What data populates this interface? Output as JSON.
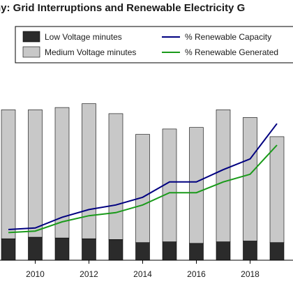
{
  "chart_data": {
    "type": "bar",
    "title": "ny: Grid Interruptions and Renewable Electricity G",
    "x": [
      2009,
      2010,
      2011,
      2012,
      2013,
      2014,
      2015,
      2016,
      2017,
      2018,
      2019
    ],
    "x_ticks": [
      "2010",
      "2012",
      "2014",
      "2016",
      "2018"
    ],
    "stacked": true,
    "grid": false,
    "legend": "top",
    "series": [
      {
        "name": "Low Voltage minutes",
        "kind": "bar",
        "color": "#2b2b2b",
        "values": [
          28,
          30,
          29,
          28,
          27,
          23,
          24,
          22,
          24,
          25,
          23
        ]
      },
      {
        "name": "Medium Voltage minutes",
        "kind": "bar",
        "color": "#c8c8c8",
        "values": [
          168,
          166,
          170,
          176,
          164,
          141,
          147,
          151,
          172,
          161,
          138
        ]
      },
      {
        "name": "% Renewable Capacity",
        "kind": "line",
        "color": "#000080",
        "values": [
          20,
          21,
          28,
          33,
          36,
          41,
          51,
          51,
          59,
          66,
          89
        ]
      },
      {
        "name": "% Renewable Generated",
        "kind": "line",
        "color": "#1a9a1a",
        "values": [
          18,
          19,
          25,
          29,
          31,
          36,
          44,
          44,
          51,
          56,
          75
        ]
      }
    ]
  }
}
